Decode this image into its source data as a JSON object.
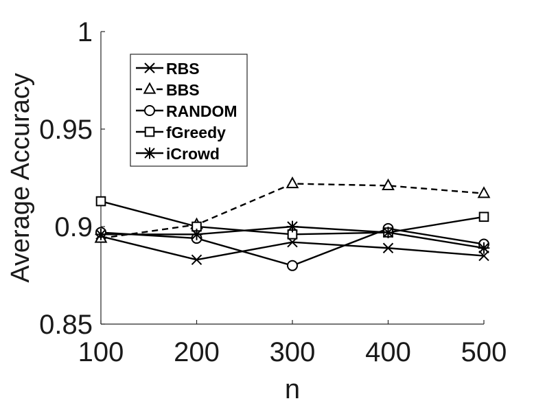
{
  "chart_data": {
    "type": "line",
    "title": "",
    "xlabel": "n",
    "ylabel": "Average Accuracy",
    "x": [
      100,
      200,
      300,
      400,
      500
    ],
    "xlim": [
      100,
      500
    ],
    "ylim": [
      0.85,
      1
    ],
    "x_ticks": [
      100,
      200,
      300,
      400,
      500
    ],
    "x_tick_labels": [
      "100",
      "200",
      "300",
      "400",
      "500"
    ],
    "y_ticks": [
      0.85,
      0.9,
      0.95,
      1
    ],
    "y_tick_labels": [
      "0.85",
      "0.9",
      "0.95",
      "1"
    ],
    "grid": false,
    "legend_position": "top-left",
    "series": [
      {
        "name": "RBS",
        "marker": "x",
        "line_style": "solid",
        "color": "#000000",
        "values": [
          0.895,
          0.883,
          0.892,
          0.889,
          0.885
        ]
      },
      {
        "name": "BBS",
        "marker": "triangle",
        "line_style": "dashed",
        "color": "#000000",
        "values": [
          0.894,
          0.901,
          0.922,
          0.921,
          0.917
        ]
      },
      {
        "name": "RANDOM",
        "marker": "circle",
        "line_style": "solid",
        "color": "#000000",
        "values": [
          0.897,
          0.894,
          0.88,
          0.899,
          0.891
        ]
      },
      {
        "name": "fGreedy",
        "marker": "square",
        "line_style": "solid",
        "color": "#000000",
        "values": [
          0.913,
          0.9,
          0.896,
          0.897,
          0.905
        ]
      },
      {
        "name": "iCrowd",
        "marker": "star",
        "line_style": "solid",
        "color": "#000000",
        "values": [
          0.896,
          0.896,
          0.9,
          0.897,
          0.889
        ]
      }
    ]
  }
}
